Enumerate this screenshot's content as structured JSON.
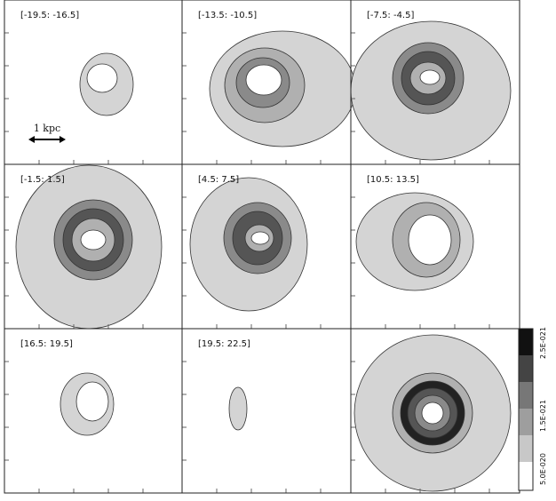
{
  "panels": [
    {
      "label": "[-19.5: -16.5]"
    },
    {
      "label": "[-13.5: -10.5]"
    },
    {
      "label": "[-7.5: -4.5]"
    },
    {
      "label": "[-1.5: 1.5]"
    },
    {
      "label": "[4.5: 7.5]"
    },
    {
      "label": "[10.5: 13.5]"
    },
    {
      "label": "[16.5: 19.5]"
    },
    {
      "label": "[19.5: 22.5]"
    }
  ],
  "scale_bar": {
    "label": "1 kpc"
  },
  "colorbar": {
    "labels": [
      "5.0E-020",
      "1.5E-021",
      "2.5E-021"
    ]
  }
}
